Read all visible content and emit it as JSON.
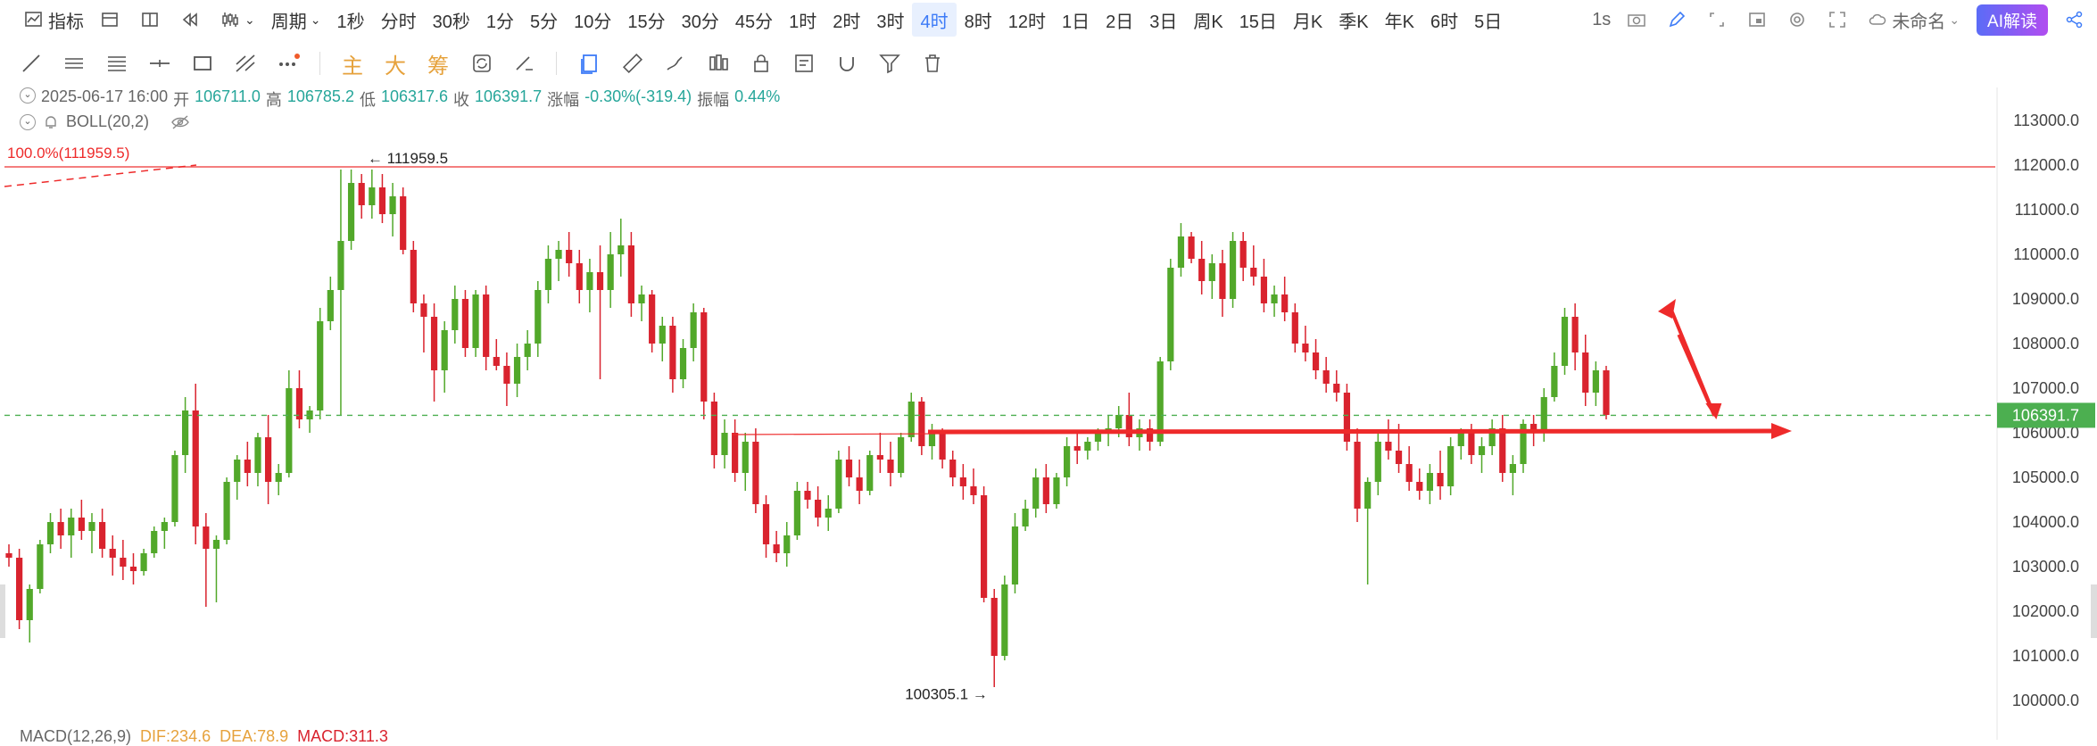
{
  "toolbar": {
    "indicator_label": "指标",
    "period_label": "周期",
    "periods": [
      "1秒",
      "分时",
      "30秒",
      "1分",
      "5分",
      "10分",
      "15分",
      "30分",
      "45分",
      "1时",
      "2时",
      "3时",
      "4时",
      "8时",
      "12时",
      "1日",
      "2日",
      "3日",
      "周K",
      "15日",
      "月K",
      "季K",
      "年K",
      "6时",
      "5日"
    ],
    "active_period": "4时",
    "right": {
      "refresh": "1s",
      "name": "未命名",
      "ai": "AI解读"
    }
  },
  "drawbar": {
    "main": "主",
    "big": "大",
    "chip": "筹"
  },
  "ohlc": {
    "datetime": "2025-06-17 16:00",
    "open_label": "开",
    "open": "106711.0",
    "high_label": "高",
    "high": "106785.2",
    "low_label": "低",
    "low": "106317.6",
    "close_label": "收",
    "close": "106391.7",
    "change_label": "涨幅",
    "change": "-0.30%(-319.4)",
    "amp_label": "振幅",
    "amp": "0.44%"
  },
  "boll": {
    "label": "BOLL(20,2)"
  },
  "macd": {
    "label": "MACD(12,26,9)",
    "dif": "DIF:234.6",
    "dea": "DEA:78.9",
    "macd": "MACD:311.3"
  },
  "chart_data": {
    "type": "candlestick",
    "y_ticks": [
      "113000.0",
      "112000.0",
      "111000.0",
      "110000.0",
      "109000.0",
      "108000.0",
      "107000.0",
      "106000.0",
      "105000.0",
      "104000.0",
      "103000.0",
      "102000.0",
      "101000.0",
      "100000.0"
    ],
    "ylim": [
      99800,
      113400
    ],
    "current_price": "106391.7",
    "high_marker": "111959.5",
    "low_marker": "100305.1",
    "fib_label": "100.0%(111959.5)",
    "colors": {
      "up": "#52a82a",
      "down": "#d9232e",
      "accent": "#ee2a2a",
      "price_line": "#4caf50"
    },
    "candles": [
      [
        103300,
        103500,
        103000,
        103200
      ],
      [
        103200,
        103400,
        101600,
        101800
      ],
      [
        101800,
        102600,
        101300,
        102500
      ],
      [
        102500,
        103600,
        102400,
        103500
      ],
      [
        103500,
        104200,
        103300,
        104000
      ],
      [
        104000,
        104300,
        103400,
        103700
      ],
      [
        103700,
        104300,
        103200,
        104100
      ],
      [
        104100,
        104500,
        103600,
        103800
      ],
      [
        103800,
        104200,
        103300,
        104000
      ],
      [
        104000,
        104300,
        103200,
        103400
      ],
      [
        103400,
        103700,
        102800,
        103200
      ],
      [
        103200,
        103600,
        102700,
        103000
      ],
      [
        103000,
        103300,
        102600,
        102900
      ],
      [
        102900,
        103400,
        102800,
        103300
      ],
      [
        103300,
        103900,
        103200,
        103800
      ],
      [
        103800,
        104100,
        103400,
        104000
      ],
      [
        104000,
        105600,
        103900,
        105500
      ],
      [
        105500,
        106800,
        105100,
        106500
      ],
      [
        106500,
        107100,
        103500,
        103900
      ],
      [
        103900,
        104200,
        102100,
        103400
      ],
      [
        103400,
        103700,
        102200,
        103600
      ],
      [
        103600,
        105000,
        103500,
        104900
      ],
      [
        104900,
        105500,
        104500,
        105400
      ],
      [
        105400,
        105800,
        104800,
        105100
      ],
      [
        105100,
        106000,
        104800,
        105900
      ],
      [
        105900,
        106400,
        104400,
        104900
      ],
      [
        104900,
        105300,
        104600,
        105100
      ],
      [
        105100,
        107400,
        105000,
        107000
      ],
      [
        107000,
        107400,
        106100,
        106300
      ],
      [
        106300,
        106600,
        106000,
        106500
      ],
      [
        106500,
        108800,
        106300,
        108500
      ],
      [
        108500,
        109500,
        108300,
        109200
      ],
      [
        109200,
        111900,
        106400,
        110300
      ],
      [
        110300,
        111900,
        110100,
        111600
      ],
      [
        111600,
        111800,
        110800,
        111100
      ],
      [
        111100,
        111900,
        110800,
        111500
      ],
      [
        111500,
        111800,
        110700,
        110900
      ],
      [
        110900,
        111600,
        110400,
        111300
      ],
      [
        111300,
        111500,
        110000,
        110100
      ],
      [
        110100,
        110300,
        108700,
        108900
      ],
      [
        108900,
        109100,
        107800,
        108600
      ],
      [
        108600,
        108900,
        106700,
        107400
      ],
      [
        107400,
        108500,
        106900,
        108300
      ],
      [
        108300,
        109300,
        108000,
        109000
      ],
      [
        109000,
        109200,
        107700,
        107900
      ],
      [
        107900,
        109200,
        107700,
        109100
      ],
      [
        109100,
        109300,
        107400,
        107700
      ],
      [
        107700,
        108100,
        107400,
        107500
      ],
      [
        107500,
        107800,
        106600,
        107100
      ],
      [
        107100,
        108000,
        106800,
        107700
      ],
      [
        107700,
        108300,
        107400,
        108000
      ],
      [
        108000,
        109400,
        107700,
        109200
      ],
      [
        109200,
        110200,
        108900,
        109900
      ],
      [
        109900,
        110300,
        109400,
        110100
      ],
      [
        110100,
        110500,
        109500,
        109800
      ],
      [
        109800,
        110100,
        108900,
        109200
      ],
      [
        109200,
        109900,
        108700,
        109600
      ],
      [
        109600,
        110200,
        107200,
        109200
      ],
      [
        109200,
        110500,
        108800,
        110000
      ],
      [
        110000,
        110800,
        109500,
        110200
      ],
      [
        110200,
        110500,
        108600,
        108900
      ],
      [
        108900,
        109300,
        108500,
        109100
      ],
      [
        109100,
        109200,
        107800,
        108000
      ],
      [
        108000,
        108600,
        107600,
        108400
      ],
      [
        108400,
        108600,
        106900,
        107200
      ],
      [
        107200,
        108100,
        107000,
        107900
      ],
      [
        107900,
        108900,
        107600,
        108700
      ],
      [
        108700,
        108800,
        106300,
        106700
      ],
      [
        106700,
        106900,
        105200,
        105500
      ],
      [
        105500,
        106300,
        105200,
        106000
      ],
      [
        106000,
        106300,
        104900,
        105100
      ],
      [
        105100,
        106000,
        104700,
        105800
      ],
      [
        105800,
        106100,
        104200,
        104400
      ],
      [
        104400,
        104600,
        103200,
        103500
      ],
      [
        103500,
        103800,
        103100,
        103300
      ],
      [
        103300,
        104000,
        103000,
        103700
      ],
      [
        103700,
        104900,
        103600,
        104700
      ],
      [
        104700,
        104900,
        104300,
        104500
      ],
      [
        104500,
        104800,
        103900,
        104100
      ],
      [
        104100,
        104600,
        103800,
        104300
      ],
      [
        104300,
        105600,
        104200,
        105400
      ],
      [
        105400,
        105700,
        104800,
        105000
      ],
      [
        105000,
        105400,
        104400,
        104700
      ],
      [
        104700,
        105600,
        104600,
        105500
      ],
      [
        105500,
        106000,
        105100,
        105400
      ],
      [
        105400,
        105800,
        104800,
        105100
      ],
      [
        105100,
        106000,
        105000,
        105900
      ],
      [
        105900,
        106900,
        105800,
        106700
      ],
      [
        106700,
        106800,
        105500,
        105700
      ],
      [
        105700,
        106200,
        105400,
        106000
      ],
      [
        106000,
        106100,
        105200,
        105400
      ],
      [
        105400,
        105600,
        104800,
        105000
      ],
      [
        105000,
        105300,
        104500,
        104800
      ],
      [
        104800,
        105200,
        104400,
        104600
      ],
      [
        104600,
        104800,
        102200,
        102300
      ],
      [
        102300,
        102500,
        100300,
        101000
      ],
      [
        101000,
        102800,
        100900,
        102600
      ],
      [
        102600,
        104200,
        102400,
        103900
      ],
      [
        103900,
        104500,
        103800,
        104300
      ],
      [
        104300,
        105200,
        104100,
        105000
      ],
      [
        105000,
        105300,
        104200,
        104400
      ],
      [
        104400,
        105100,
        104300,
        105000
      ],
      [
        105000,
        105900,
        104800,
        105700
      ],
      [
        105700,
        106000,
        105300,
        105600
      ],
      [
        105600,
        105900,
        105400,
        105800
      ],
      [
        105800,
        106100,
        105600,
        106000
      ],
      [
        106000,
        106400,
        105700,
        106100
      ],
      [
        106100,
        106600,
        105900,
        106400
      ],
      [
        106400,
        106900,
        105700,
        105900
      ],
      [
        105900,
        106300,
        105600,
        106100
      ],
      [
        106100,
        106300,
        105600,
        105800
      ],
      [
        105800,
        107700,
        105700,
        107600
      ],
      [
        107600,
        109900,
        107400,
        109700
      ],
      [
        109700,
        110700,
        109500,
        110400
      ],
      [
        110400,
        110500,
        109800,
        109900
      ],
      [
        109900,
        110300,
        109100,
        109400
      ],
      [
        109400,
        110000,
        109000,
        109800
      ],
      [
        109800,
        110100,
        108600,
        109000
      ],
      [
        109000,
        110500,
        108800,
        110300
      ],
      [
        110300,
        110500,
        109400,
        109700
      ],
      [
        109700,
        110200,
        109300,
        109500
      ],
      [
        109500,
        109900,
        108700,
        108900
      ],
      [
        108900,
        109300,
        108600,
        109100
      ],
      [
        109100,
        109500,
        108500,
        108700
      ],
      [
        108700,
        108900,
        107800,
        108000
      ],
      [
        108000,
        108400,
        107600,
        107800
      ],
      [
        107800,
        108100,
        107200,
        107400
      ],
      [
        107400,
        107700,
        106900,
        107100
      ],
      [
        107100,
        107400,
        106700,
        106900
      ],
      [
        106900,
        107100,
        105600,
        105800
      ],
      [
        105800,
        106100,
        104000,
        104300
      ],
      [
        104300,
        105000,
        102600,
        104900
      ],
      [
        104900,
        106000,
        104600,
        105800
      ],
      [
        105800,
        106300,
        105400,
        105600
      ],
      [
        105600,
        106200,
        105100,
        105300
      ],
      [
        105300,
        105700,
        104700,
        104900
      ],
      [
        104900,
        105200,
        104500,
        104700
      ],
      [
        104700,
        105300,
        104400,
        105100
      ],
      [
        105100,
        105600,
        104500,
        104800
      ],
      [
        104800,
        105900,
        104600,
        105700
      ],
      [
        105700,
        106100,
        105400,
        106000
      ],
      [
        106000,
        106200,
        105300,
        105500
      ],
      [
        105500,
        105900,
        105100,
        105700
      ],
      [
        105700,
        106300,
        105500,
        106100
      ],
      [
        106100,
        106400,
        104900,
        105100
      ],
      [
        105100,
        105500,
        104600,
        105300
      ],
      [
        105300,
        106300,
        105100,
        106200
      ],
      [
        106200,
        106400,
        105700,
        106000
      ],
      [
        106000,
        107000,
        105800,
        106800
      ],
      [
        106800,
        107800,
        106700,
        107500
      ],
      [
        107500,
        108800,
        107300,
        108600
      ],
      [
        108600,
        108900,
        107400,
        107800
      ],
      [
        107800,
        108200,
        106600,
        106900
      ],
      [
        106900,
        107600,
        106600,
        107400
      ],
      [
        107400,
        107500,
        106300,
        106400
      ]
    ]
  }
}
